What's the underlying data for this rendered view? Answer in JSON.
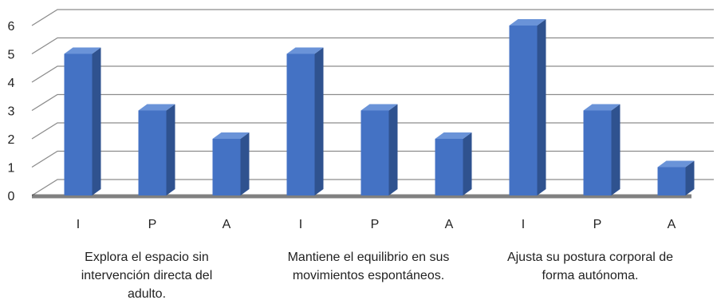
{
  "chart_data": {
    "type": "bar",
    "style": "3d-column",
    "ylim": [
      0,
      6
    ],
    "yticks": [
      "0",
      "1",
      "2",
      "3",
      "4",
      "5",
      "6"
    ],
    "categories": [
      "I",
      "P",
      "A",
      "I",
      "P",
      "A",
      "I",
      "P",
      "A"
    ],
    "values": [
      5,
      3,
      2,
      5,
      3,
      2,
      6,
      3,
      1
    ],
    "groups": [
      {
        "lines": [
          "Explora el espacio sin",
          "intervención directa del",
          "adulto."
        ]
      },
      {
        "lines": [
          "Mantiene el equilibrio en sus",
          "movimientos espontáneos."
        ]
      },
      {
        "lines": [
          "Ajusta su postura corporal de",
          "forma autónoma."
        ]
      }
    ],
    "grid": true,
    "legend": "none",
    "colors": {
      "bar_front": "#4472C4",
      "bar_side": "#2F528F",
      "bar_top": "#6A93D8",
      "grid": "#8C8C8C",
      "floor_shadow": "#222222"
    }
  }
}
